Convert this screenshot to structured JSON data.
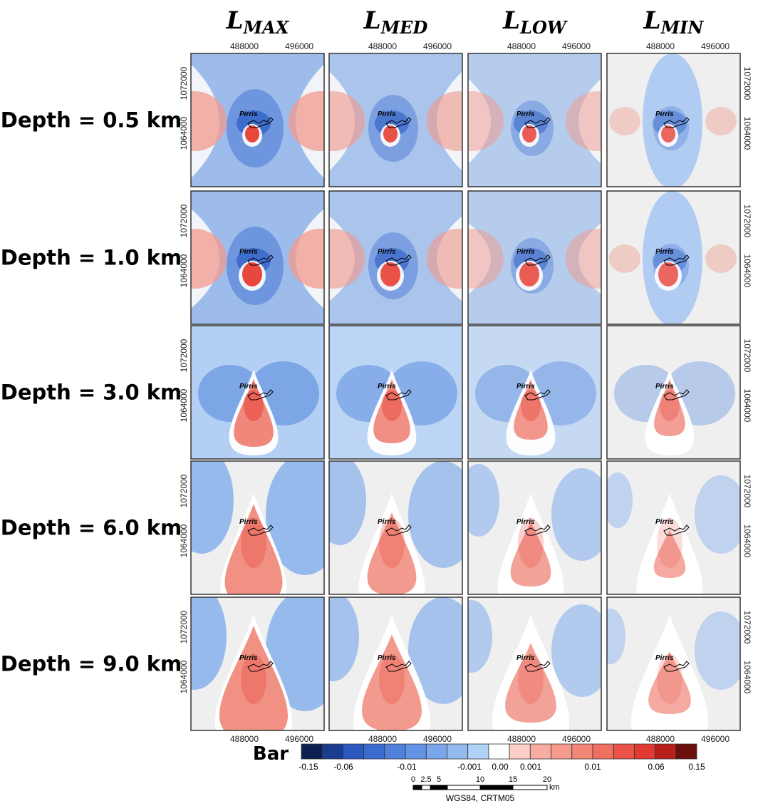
{
  "columns": [
    {
      "symbol": "L",
      "subscript": "MAX"
    },
    {
      "symbol": "L",
      "subscript": "MED"
    },
    {
      "symbol": "L",
      "subscript": "LOW"
    },
    {
      "symbol": "L",
      "subscript": "MIN"
    }
  ],
  "rows": [
    "Depth = 0.5 km",
    "Depth = 1.0 km",
    "Depth = 3.0 km",
    "Depth = 6.0 km",
    "Depth = 9.0 km"
  ],
  "x_ticks": [
    "488000",
    "496000"
  ],
  "y_ticks": [
    "1072000",
    "1064000"
  ],
  "place_label": "Pirris",
  "colorbar": {
    "title": "Bar",
    "colors": [
      "#0d1f4f",
      "#1a3d8f",
      "#2a58c0",
      "#3a6cd0",
      "#4f80dc",
      "#6393e2",
      "#7aa6ea",
      "#93bbf0",
      "#b0d2f7",
      "#ffffff",
      "#fcd0c8",
      "#f7aca0",
      "#f59a8c",
      "#f28677",
      "#ef6f60",
      "#e9534a",
      "#e03a32",
      "#b8201c",
      "#6b0e0c"
    ],
    "labels": [
      "-0.15",
      "-0.06",
      "-0.01",
      "-0.001",
      "0.00",
      "0.001",
      "0.01",
      "0.06",
      "0.15"
    ]
  },
  "scale_bar": {
    "labels": [
      "0",
      "2.5",
      "5",
      "10",
      "15",
      "20"
    ],
    "unit": "km",
    "projection": "WGS84, CRTM05"
  }
}
